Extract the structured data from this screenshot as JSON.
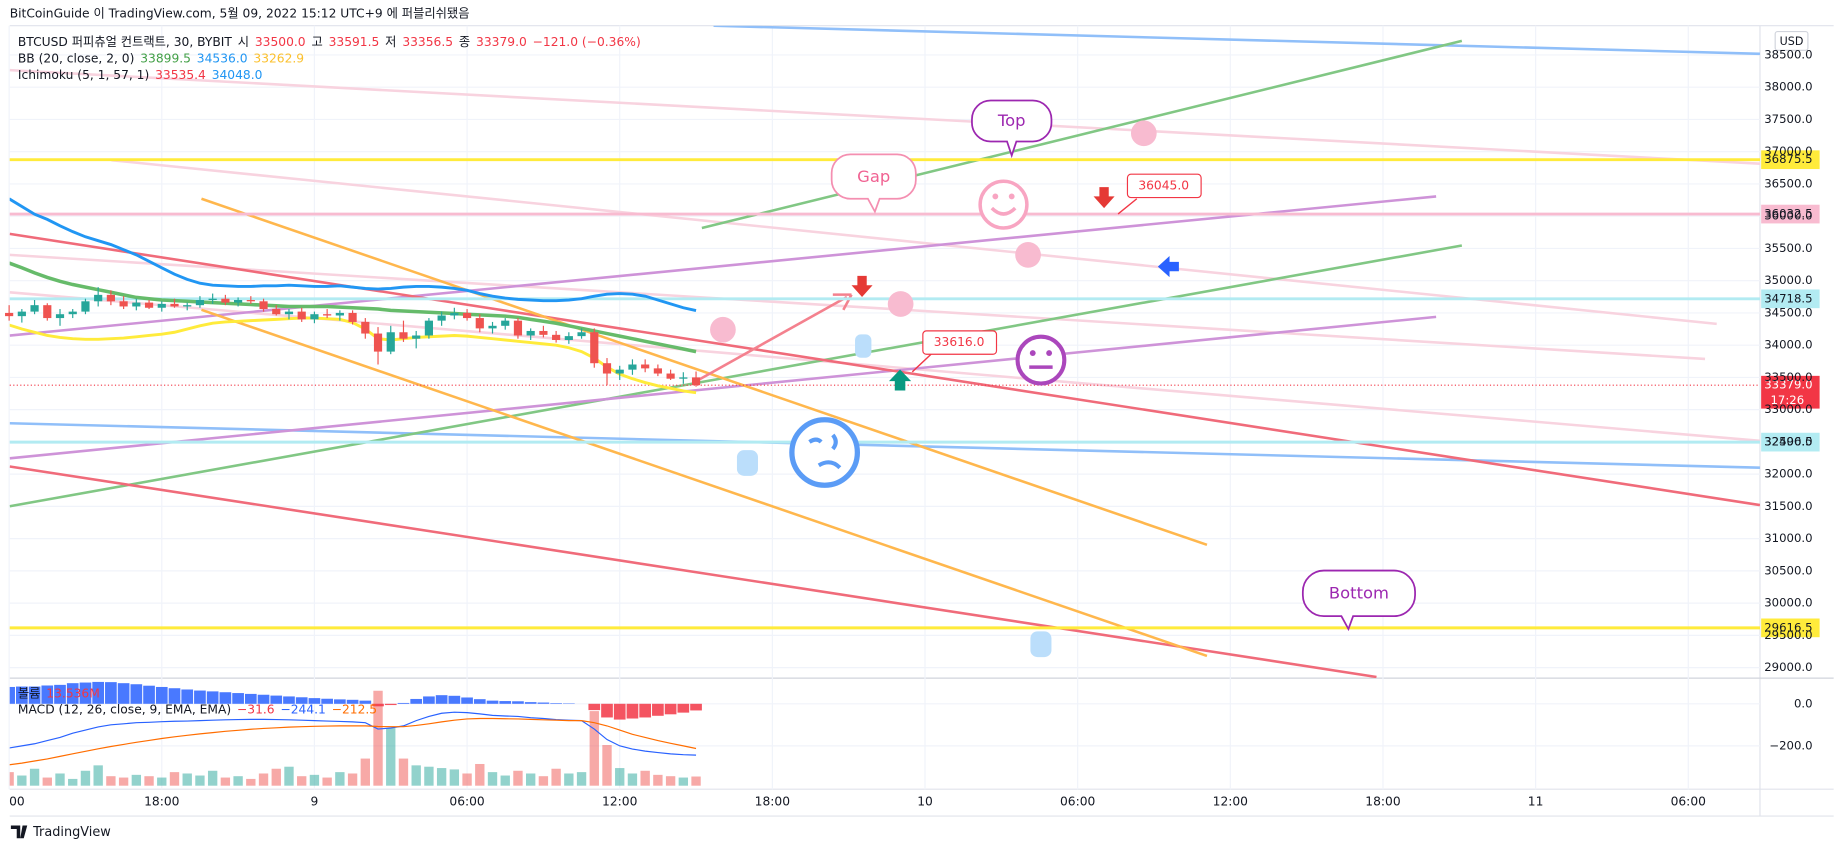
{
  "chart_data": {
    "type": "candlestick",
    "title": "BitCoinGuide 이 TradingView.com, 5월 09, 2022 15:12 UTC+9 에 퍼블리쉬됐음",
    "legend": [
      [
        {
          "text": "BTCUSD 퍼피츄얼 컨트랙트, 30, BYBIT",
          "color": "#131722"
        },
        {
          "text": "시",
          "color": "#131722"
        },
        {
          "text": "33500.0",
          "color": "#f23645"
        },
        {
          "text": "고",
          "color": "#131722"
        },
        {
          "text": "33591.5",
          "color": "#f23645"
        },
        {
          "text": "저",
          "color": "#131722"
        },
        {
          "text": "33356.5",
          "color": "#f23645"
        },
        {
          "text": "종",
          "color": "#131722"
        },
        {
          "text": "33379.0",
          "color": "#f23645"
        },
        {
          "text": "−121.0 (−0.36%)",
          "color": "#f23645"
        }
      ],
      [
        {
          "text": "BB (20, close, 2, 0)",
          "color": "#131722"
        },
        {
          "text": "33899.5",
          "color": "#43a047"
        },
        {
          "text": "34536.0",
          "color": "#2196f3"
        },
        {
          "text": "33262.9",
          "color": "#fbc02d"
        }
      ],
      [
        {
          "text": "Ichimoku (5, 1, 57, 1)",
          "color": "#131722"
        },
        {
          "text": "33535.4",
          "color": "#f23645"
        },
        {
          "text": "34048.0",
          "color": "#2196f3"
        }
      ],
      [
        {
          "text": "볼륨",
          "color": "#131722"
        },
        {
          "text": "13.536M",
          "color": "#f23645"
        }
      ],
      [
        {
          "text": "MACD (12, 26, close, 9, EMA, EMA)",
          "color": "#131722"
        },
        {
          "text": "−31.6",
          "color": "#f23645"
        },
        {
          "text": "−244.1",
          "color": "#2962ff"
        },
        {
          "text": "−212.5",
          "color": "#ff6d00"
        }
      ]
    ],
    "currency": "USD",
    "up_color": "#26a69a",
    "down_color": "#ef5350",
    "open": [
      34500,
      34450,
      34520,
      34620,
      34420,
      34480,
      34520,
      34680,
      34780,
      34680,
      34600,
      34660,
      34580,
      34640,
      34600,
      34620,
      34700,
      34720,
      34660,
      34700,
      34680,
      34560,
      34480,
      34520,
      34400,
      34480,
      34460,
      34500,
      34360,
      34180,
      33900,
      34200,
      34100,
      34150,
      34380,
      34460,
      34500,
      34420,
      34260,
      34300,
      34380,
      34150,
      34220,
      34160,
      34080,
      34140,
      34200,
      33720,
      33560,
      33620,
      33700,
      33640,
      33560,
      33480,
      33500
    ],
    "high": [
      34620,
      34560,
      34700,
      34650,
      34560,
      34560,
      34720,
      34900,
      34850,
      34760,
      34720,
      34700,
      34680,
      34720,
      34660,
      34760,
      34800,
      34780,
      34740,
      34760,
      34720,
      34620,
      34560,
      34580,
      34520,
      34560,
      34540,
      34540,
      34420,
      34280,
      34300,
      34380,
      34220,
      34420,
      34520,
      34580,
      34560,
      34480,
      34360,
      34420,
      34420,
      34260,
      34300,
      34220,
      34200,
      34260,
      34260,
      33800,
      33680,
      33780,
      33780,
      33700,
      33620,
      33580,
      33591.5
    ],
    "low": [
      34380,
      34350,
      34480,
      34380,
      34300,
      34420,
      34480,
      34600,
      34620,
      34560,
      34540,
      34560,
      34520,
      34580,
      34540,
      34580,
      34640,
      34620,
      34600,
      34640,
      34520,
      34460,
      34400,
      34360,
      34340,
      34420,
      34380,
      34320,
      34100,
      33700,
      33860,
      34050,
      33950,
      34100,
      34300,
      34400,
      34380,
      34200,
      34180,
      34240,
      34100,
      34080,
      34120,
      34040,
      34020,
      34100,
      33650,
      33380,
      33460,
      33540,
      33580,
      33520,
      33460,
      33400,
      33356.5
    ],
    "close": [
      34450,
      34520,
      34620,
      34420,
      34480,
      34520,
      34680,
      34780,
      34680,
      34600,
      34660,
      34580,
      34640,
      34600,
      34620,
      34700,
      34720,
      34660,
      34700,
      34680,
      34560,
      34480,
      34520,
      34400,
      34480,
      34460,
      34500,
      34360,
      34180,
      33900,
      34200,
      34100,
      34150,
      34380,
      34460,
      34500,
      34420,
      34260,
      34300,
      34380,
      34150,
      34220,
      34160,
      34080,
      34140,
      34200,
      33720,
      33560,
      33620,
      33700,
      33640,
      33560,
      33480,
      33500,
      33379
    ],
    "bb": [
      {
        "name": "upper",
        "color": "#2196f3",
        "values": [
          36270,
          36150,
          36030,
          35950,
          35850,
          35760,
          35680,
          35620,
          35560,
          35480,
          35400,
          35300,
          35200,
          35100,
          35020,
          34960,
          34930,
          34920,
          34910,
          34910,
          34920,
          34920,
          34930,
          34920,
          34910,
          34910,
          34920,
          34900,
          34880,
          34870,
          34880,
          34900,
          34910,
          34910,
          34900,
          34880,
          34850,
          34800,
          34760,
          34730,
          34710,
          34700,
          34690,
          34690,
          34700,
          34720,
          34760,
          34790,
          34800,
          34790,
          34760,
          34700,
          34640,
          34580,
          34536
        ]
      },
      {
        "name": "basis",
        "color": "#66bb6a",
        "values": [
          35273,
          35200,
          35120,
          35050,
          34990,
          34940,
          34900,
          34860,
          34820,
          34780,
          34740,
          34720,
          34700,
          34690,
          34680,
          34670,
          34660,
          34650,
          34640,
          34630,
          34620,
          34610,
          34600,
          34600,
          34600,
          34600,
          34590,
          34580,
          34570,
          34560,
          34540,
          34530,
          34520,
          34510,
          34500,
          34490,
          34480,
          34470,
          34460,
          34450,
          34430,
          34400,
          34370,
          34340,
          34300,
          34260,
          34220,
          34180,
          34140,
          34100,
          34060,
          34020,
          33980,
          33940,
          33899.5
        ]
      },
      {
        "name": "lower",
        "color": "#ffeb3b",
        "values": [
          34312,
          34250,
          34200,
          34150,
          34120,
          34100,
          34090,
          34090,
          34100,
          34110,
          34130,
          34150,
          34170,
          34200,
          34250,
          34300,
          34340,
          34360,
          34370,
          34380,
          34390,
          34400,
          34410,
          34420,
          34420,
          34410,
          34400,
          34350,
          34250,
          34100,
          34080,
          34100,
          34120,
          34130,
          34140,
          34150,
          34140,
          34120,
          34100,
          34080,
          34060,
          34040,
          34020,
          34000,
          33960,
          33900,
          33800,
          33660,
          33550,
          33480,
          33420,
          33370,
          33330,
          33290,
          33262.9
        ]
      }
    ],
    "ylim": [
      28837,
      38953
    ],
    "yticks": [
      {
        "value": 38500,
        "label": "38500.0"
      },
      {
        "value": 38000,
        "label": "38000.0"
      },
      {
        "value": 37500,
        "label": "37500.0"
      },
      {
        "value": 37000,
        "label": "37000.0"
      },
      {
        "value": 36500,
        "label": "36500.0"
      },
      {
        "value": 36000,
        "label": "36000.0"
      },
      {
        "value": 35500,
        "label": "35500.0"
      },
      {
        "value": 35000,
        "label": "35000.0"
      },
      {
        "value": 34500,
        "label": "34500.0"
      },
      {
        "value": 34000,
        "label": "34000.0"
      },
      {
        "value": 33500,
        "label": "33500.0"
      },
      {
        "value": 33000,
        "label": "33000.0"
      },
      {
        "value": 32500,
        "label": "32500.0"
      },
      {
        "value": 32000,
        "label": "32000.0"
      },
      {
        "value": 31500,
        "label": "31500.0"
      },
      {
        "value": 31000,
        "label": "31000.0"
      },
      {
        "value": 30500,
        "label": "30500.0"
      },
      {
        "value": 30000,
        "label": "30000.0"
      },
      {
        "value": 29500,
        "label": "29500.0"
      },
      {
        "value": 29000,
        "label": "29000.0"
      }
    ],
    "grid": true,
    "levels": [
      {
        "value": 36875.5,
        "label": "36875.5",
        "color": "#ffeb3b"
      },
      {
        "value": 36032.5,
        "label": "36032.5",
        "color": "#f8bbd0"
      },
      {
        "value": 34718.5,
        "label": "34718.5",
        "color": "#b2ebf2"
      },
      {
        "value": 32496.5,
        "label": "32496.5",
        "color": "#b2ebf2"
      },
      {
        "value": 29616.5,
        "label": "29616.5",
        "color": "#ffeb3b"
      }
    ],
    "last_price": {
      "value": 33379,
      "label": "33379.0",
      "countdown": "17:26",
      "color": "#f23645"
    },
    "annotations": [
      "Top",
      "Gap",
      "Bottom",
      "36045.0",
      "33616.0"
    ],
    "volume": [
      20,
      15,
      25,
      12,
      18,
      10,
      22,
      30,
      14,
      12,
      16,
      14,
      12,
      20,
      18,
      15,
      22,
      12,
      14,
      10,
      18,
      25,
      28,
      14,
      16,
      12,
      20,
      18,
      40,
      140,
      85,
      40,
      30,
      28,
      26,
      24,
      18,
      32,
      20,
      15,
      22,
      18,
      14,
      25,
      18,
      20,
      110,
      60,
      26,
      18,
      22,
      16,
      14,
      12,
      13.536
    ],
    "macd_hist": [
      80,
      82,
      82,
      87,
      90,
      98,
      101,
      104,
      103,
      98,
      93,
      86,
      80,
      74,
      68,
      63,
      59,
      55,
      51,
      47,
      43,
      39,
      35,
      31,
      27,
      24,
      21,
      19,
      15,
      -12,
      -6,
      4,
      23,
      35,
      41,
      38,
      30,
      22,
      15,
      13,
      12,
      8,
      6,
      3,
      2,
      0,
      -30,
      -65,
      -75,
      -70,
      -65,
      -57,
      -50,
      -42,
      -31.6
    ],
    "macd": [
      -210,
      -200,
      -190,
      -175,
      -160,
      -140,
      -125,
      -110,
      -100,
      -95,
      -90,
      -88,
      -85,
      -83,
      -82,
      -80,
      -78,
      -76,
      -75,
      -74,
      -74,
      -75,
      -76,
      -78,
      -80,
      -82,
      -84,
      -86,
      -90,
      -120,
      -115,
      -105,
      -80,
      -60,
      -45,
      -40,
      -42,
      -48,
      -55,
      -58,
      -60,
      -66,
      -70,
      -75,
      -78,
      -80,
      -120,
      -170,
      -200,
      -215,
      -225,
      -232,
      -238,
      -242,
      -244.1
    ],
    "signal": [
      -290,
      -282,
      -272,
      -262,
      -250,
      -238,
      -226,
      -214,
      -203,
      -193,
      -183,
      -174,
      -165,
      -157,
      -150,
      -143,
      -137,
      -131,
      -126,
      -121,
      -117,
      -114,
      -111,
      -109,
      -107,
      -106,
      -105,
      -105,
      -105,
      -108,
      -109,
      -109,
      -103,
      -95,
      -86,
      -78,
      -72,
      -70,
      -70,
      -71,
      -72,
      -74,
      -76,
      -78,
      -80,
      -80,
      -90,
      -105,
      -125,
      -145,
      -160,
      -175,
      -188,
      -200,
      -212.5
    ],
    "macd_color": "#2962ff",
    "signal_color": "#ff6d00",
    "macd_ylim": [
      -406,
      122
    ],
    "macd_yticks": [
      {
        "value": 0,
        "label": "0.0"
      },
      {
        "value": -200,
        "label": "−200.0"
      }
    ],
    "xticks": [
      "00",
      "18:00",
      "9",
      "06:00",
      "12:00",
      "18:00",
      "10",
      "06:00",
      "12:00",
      "18:00",
      "11",
      "06:00"
    ],
    "footer": "TradingView"
  }
}
